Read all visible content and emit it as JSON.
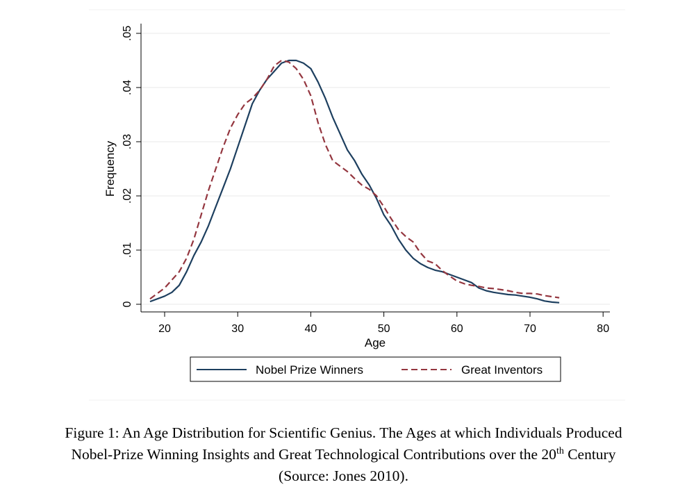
{
  "chart_data": {
    "type": "line",
    "xlabel": "Age",
    "ylabel": "Frequency",
    "xlim": [
      18,
      81
    ],
    "ylim": [
      0,
      0.05
    ],
    "xticks": [
      20,
      30,
      40,
      50,
      60,
      70,
      80
    ],
    "xtick_labels": [
      "20",
      "30",
      "40",
      "50",
      "60",
      "70",
      "80"
    ],
    "yticks": [
      0,
      0.01,
      0.02,
      0.03,
      0.04,
      0.05
    ],
    "ytick_labels": [
      "0",
      ".01",
      ".02",
      ".03",
      ".04",
      ".05"
    ],
    "grid": "horizontal",
    "legend_position": "bottom",
    "series": [
      {
        "name": "Nobel Prize Winners",
        "color": "#1d3f5f",
        "dash": "solid",
        "x": [
          18,
          20,
          21,
          22,
          23,
          24,
          25,
          26,
          27,
          28,
          29,
          30,
          31,
          32,
          33,
          34,
          35,
          36,
          37,
          38,
          39,
          40,
          41,
          42,
          43,
          44,
          45,
          46,
          47,
          48,
          49,
          50,
          51,
          52,
          53,
          54,
          55,
          56,
          57,
          58,
          59,
          60,
          61,
          62,
          63,
          64,
          65,
          66,
          67,
          68,
          69,
          70,
          71,
          72,
          73,
          74
        ],
        "y": [
          0.0005,
          0.0015,
          0.0022,
          0.0035,
          0.006,
          0.009,
          0.0115,
          0.0145,
          0.018,
          0.0215,
          0.025,
          0.029,
          0.033,
          0.037,
          0.0395,
          0.0415,
          0.043,
          0.0445,
          0.045,
          0.045,
          0.0445,
          0.0435,
          0.041,
          0.038,
          0.0345,
          0.0315,
          0.0285,
          0.0265,
          0.024,
          0.022,
          0.0195,
          0.0165,
          0.0145,
          0.012,
          0.01,
          0.0085,
          0.0075,
          0.0068,
          0.0063,
          0.006,
          0.0055,
          0.005,
          0.0045,
          0.004,
          0.003,
          0.0025,
          0.0022,
          0.002,
          0.0018,
          0.0017,
          0.0015,
          0.0013,
          0.001,
          0.0006,
          0.0004,
          0.0003
        ]
      },
      {
        "name": "Great Inventors",
        "color": "#94363f",
        "dash": "dashed",
        "x": [
          18,
          20,
          21,
          22,
          23,
          24,
          25,
          26,
          27,
          28,
          29,
          30,
          31,
          32,
          33,
          34,
          35,
          36,
          37,
          38,
          39,
          40,
          41,
          42,
          43,
          44,
          45,
          46,
          47,
          48,
          49,
          50,
          51,
          52,
          53,
          54,
          55,
          56,
          57,
          58,
          59,
          60,
          61,
          62,
          63,
          64,
          65,
          66,
          67,
          68,
          69,
          70,
          71,
          72,
          73,
          74
        ],
        "y": [
          0.001,
          0.003,
          0.0045,
          0.006,
          0.0085,
          0.012,
          0.0165,
          0.021,
          0.025,
          0.029,
          0.0325,
          0.035,
          0.037,
          0.038,
          0.0395,
          0.0415,
          0.044,
          0.045,
          0.0447,
          0.0435,
          0.0415,
          0.0385,
          0.0335,
          0.0295,
          0.0265,
          0.0255,
          0.0245,
          0.0232,
          0.022,
          0.0212,
          0.02,
          0.018,
          0.0158,
          0.0138,
          0.0125,
          0.0115,
          0.0095,
          0.008,
          0.0075,
          0.0062,
          0.0052,
          0.0043,
          0.0038,
          0.0035,
          0.0033,
          0.003,
          0.0029,
          0.0027,
          0.0025,
          0.0022,
          0.002,
          0.002,
          0.0019,
          0.0016,
          0.0014,
          0.0012
        ]
      }
    ]
  },
  "caption": {
    "line1": "Figure 1:  An Age Distribution for Scientific Genius.  The Ages at which Individuals Produced",
    "line2_before": "Nobel-Prize Winning Insights and Great Technological Contributions over the 20",
    "line2_sup": "th",
    "line2_after": " Century",
    "line3": "(Source: Jones 2010)."
  }
}
